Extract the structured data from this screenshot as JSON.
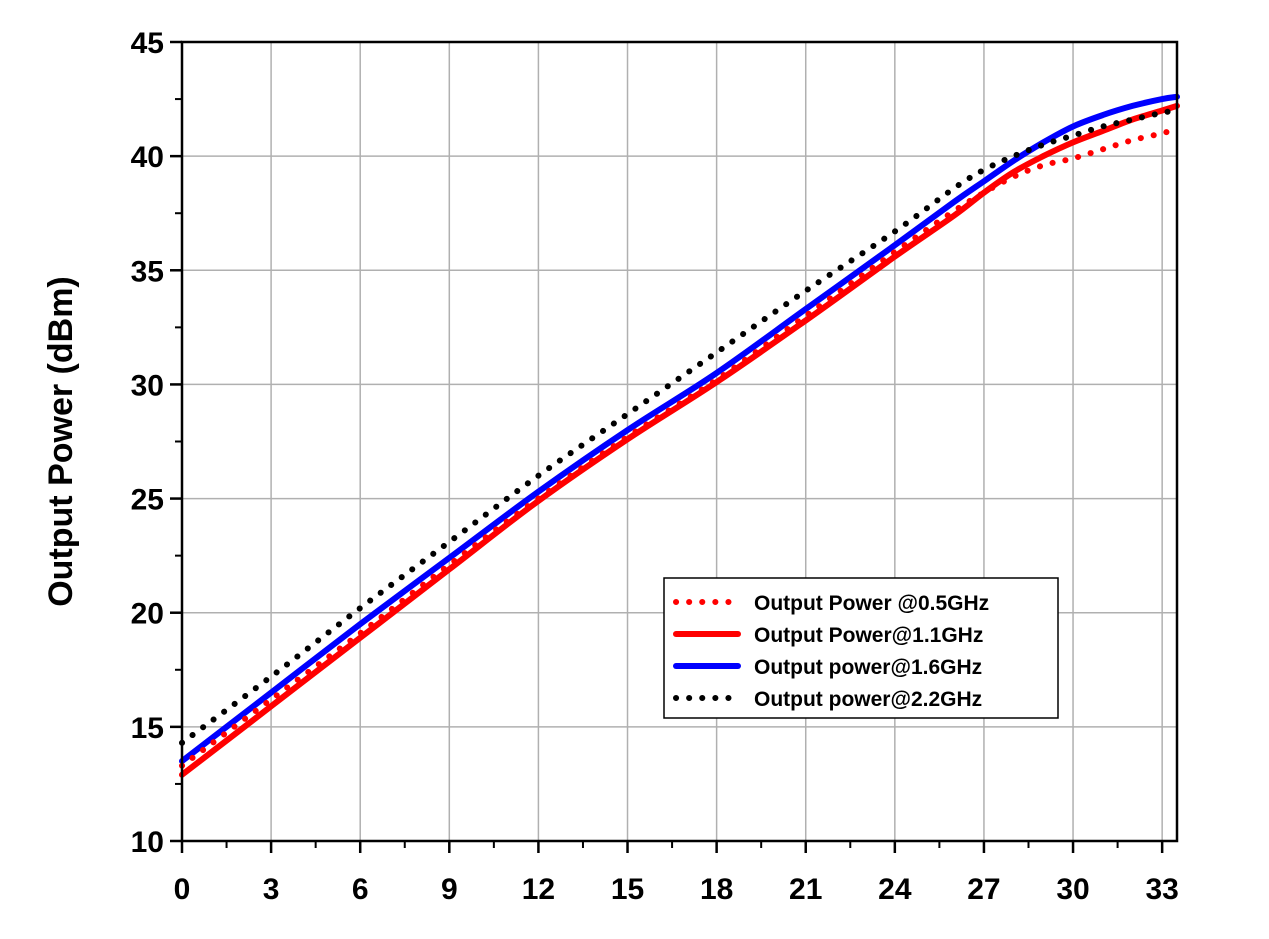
{
  "chart_data": {
    "type": "line",
    "title": "",
    "xlabel": "",
    "ylabel": "Output Power (dBm)",
    "xlim": [
      0,
      33.5
    ],
    "ylim": [
      10,
      45
    ],
    "x_ticks": [
      "0",
      "3",
      "6",
      "9",
      "12",
      "15",
      "18",
      "21",
      "24",
      "27",
      "30",
      "33"
    ],
    "y_ticks": [
      "10",
      "15",
      "20",
      "25",
      "30",
      "35",
      "40",
      "45"
    ],
    "grid": true,
    "legend_position": "lower-right",
    "series": [
      {
        "name": "Output Power @0.5GHz",
        "color": "#ff0000",
        "style": "dotted",
        "x": [
          0,
          3,
          6,
          9,
          12,
          15,
          18,
          21,
          24,
          26,
          27,
          28,
          29,
          30,
          31,
          32,
          33,
          33.5
        ],
        "y": [
          13.3,
          16.2,
          19.1,
          22.1,
          25.0,
          27.7,
          30.2,
          33.0,
          35.8,
          37.6,
          38.4,
          39.1,
          39.6,
          39.9,
          40.3,
          40.7,
          41.0,
          41.2
        ]
      },
      {
        "name": "Output Power@1.1GHz",
        "color": "#ff0000",
        "style": "solid",
        "x": [
          0,
          3,
          6,
          9,
          12,
          15,
          18,
          21,
          24,
          26,
          27,
          28,
          29,
          30,
          31,
          32,
          33,
          33.5
        ],
        "y": [
          12.9,
          15.9,
          18.9,
          21.9,
          24.9,
          27.6,
          30.1,
          32.8,
          35.6,
          37.4,
          38.4,
          39.3,
          40.0,
          40.6,
          41.1,
          41.6,
          42.0,
          42.2
        ]
      },
      {
        "name": "Output power@1.6GHz",
        "color": "#0000ff",
        "style": "solid",
        "x": [
          0,
          3,
          6,
          9,
          12,
          15,
          18,
          21,
          24,
          26,
          27,
          28,
          29,
          30,
          31,
          32,
          33,
          33.5
        ],
        "y": [
          13.5,
          16.5,
          19.5,
          22.4,
          25.3,
          28.0,
          30.5,
          33.3,
          36.1,
          38.0,
          38.9,
          39.8,
          40.6,
          41.3,
          41.8,
          42.2,
          42.5,
          42.6
        ]
      },
      {
        "name": "Output power@2.2GHz",
        "color": "#000000",
        "style": "dotted",
        "x": [
          0,
          3,
          6,
          9,
          12,
          15,
          18,
          21,
          24,
          26,
          27,
          28,
          29,
          30,
          31,
          32,
          33,
          33.5
        ],
        "y": [
          14.3,
          17.2,
          20.2,
          23.1,
          26.0,
          28.7,
          31.4,
          34.1,
          36.7,
          38.6,
          39.4,
          40.0,
          40.5,
          40.9,
          41.3,
          41.6,
          41.9,
          42.0
        ]
      }
    ]
  }
}
